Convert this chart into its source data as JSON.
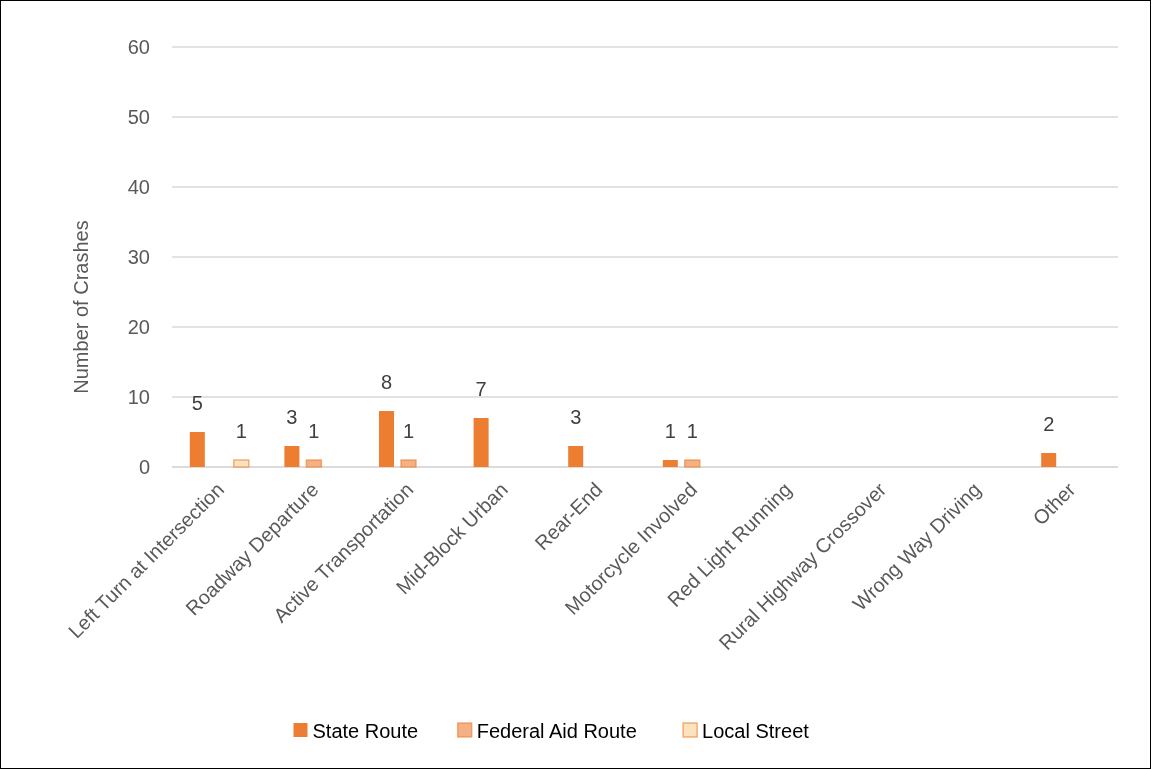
{
  "chart_data": {
    "type": "bar",
    "ylabel": "Number of Crashes",
    "categories": [
      "Left Turn at Intersection",
      "Roadway Departure",
      "Active Transportation",
      "Mid-Block Urban",
      "Rear-End",
      "Motorcycle Involved",
      "Red Light Running",
      "Rural Highway Crossover",
      "Wrong Way Driving",
      "Other"
    ],
    "series": [
      {
        "name": "State Route",
        "color": "#ed7d31",
        "values": [
          5,
          3,
          8,
          7,
          3,
          1,
          null,
          null,
          null,
          2
        ]
      },
      {
        "name": "Federal Aid Route",
        "color": "#f4b183",
        "values": [
          null,
          1,
          1,
          null,
          null,
          1,
          null,
          null,
          null,
          null
        ]
      },
      {
        "name": "Local Street",
        "color": "#fde3bd",
        "values": [
          1,
          null,
          null,
          null,
          null,
          null,
          null,
          null,
          null,
          null
        ]
      }
    ],
    "ylim": [
      0,
      60
    ],
    "yticks": [
      0,
      10,
      20,
      30,
      40,
      50,
      60
    ],
    "grid": "y",
    "legend": "bottom",
    "data_labels": true
  }
}
